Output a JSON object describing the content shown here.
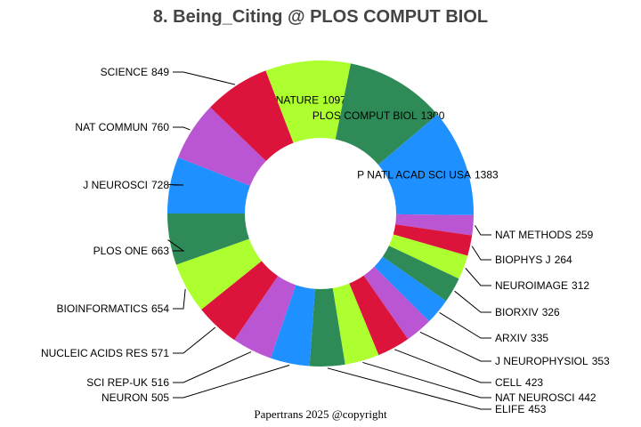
{
  "chart_data": {
    "type": "donut",
    "title": "8. Being_Citing @ PLOS COMPUT BIOL",
    "footer": "Papertrans 2025 @copyright",
    "categories": [
      "NATURE",
      "PLOS COMPUT BIOL",
      "P NATL ACAD SCI USA",
      "NAT METHODS",
      "BIOPHYS J",
      "NEUROIMAGE",
      "BIORXIV",
      "ARXIV",
      "J NEUROPHYSIOL",
      "CELL",
      "NAT NEUROSCI",
      "ELIFE",
      "NEURON",
      "SCI REP-UK",
      "NUCLEIC ACIDS RES",
      "BIOINFORMATICS",
      "PLOS ONE",
      "J NEUROSCI",
      "NAT COMMUN",
      "SCIENCE"
    ],
    "values": [
      1097,
      1300,
      1383,
      259,
      264,
      312,
      326,
      335,
      353,
      423,
      442,
      453,
      505,
      516,
      571,
      654,
      663,
      728,
      760,
      849
    ],
    "colors": [
      "#adff2f",
      "#2e8b57",
      "#1e90ff",
      "#ba55d3",
      "#dc143c",
      "#adff2f",
      "#2e8b57",
      "#1e90ff",
      "#ba55d3",
      "#dc143c",
      "#adff2f",
      "#2e8b57",
      "#1e90ff",
      "#ba55d3",
      "#dc143c",
      "#adff2f",
      "#2e8b57",
      "#1e90ff",
      "#ba55d3",
      "#dc143c"
    ]
  }
}
